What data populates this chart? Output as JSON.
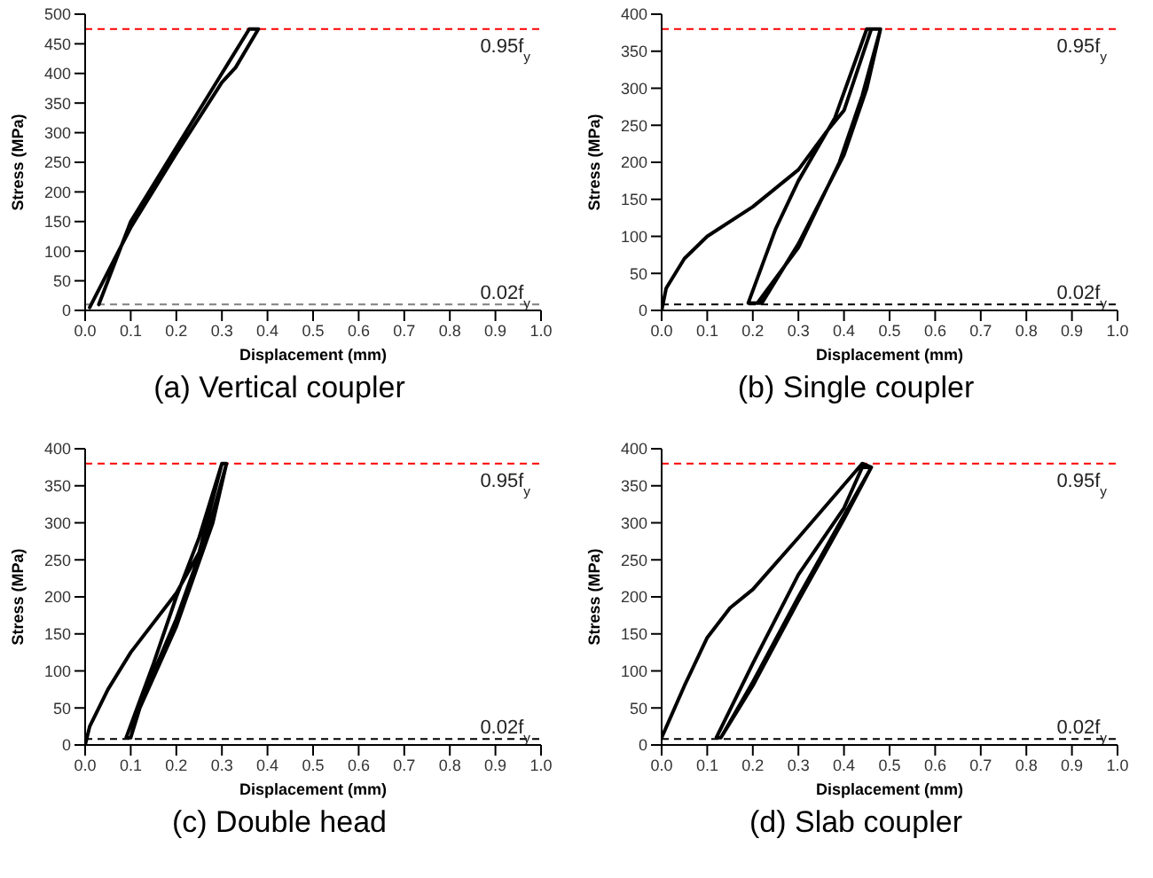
{
  "chart_data": [
    {
      "type": "line",
      "title": "(a) Vertical coupler",
      "xlabel": "Displacement (mm)",
      "ylabel": "Stress (MPa)",
      "xlim": [
        0,
        1
      ],
      "ylim": [
        0,
        500
      ],
      "xticks": [
        {
          "value": 0,
          "label": "0.0"
        },
        {
          "value": 0.1,
          "label": "0.1"
        },
        {
          "value": 0.2,
          "label": "0.2"
        },
        {
          "value": 0.3,
          "label": "0.3"
        },
        {
          "value": 0.4,
          "label": "0.4"
        },
        {
          "value": 0.5,
          "label": "0.5"
        },
        {
          "value": 0.6,
          "label": "0.6"
        },
        {
          "value": 0.7,
          "label": "0.7"
        },
        {
          "value": 0.8,
          "label": "0.8"
        },
        {
          "value": 0.9,
          "label": "0.9"
        },
        {
          "value": 1,
          "label": "1.0"
        }
      ],
      "yticks": [
        0,
        50,
        100,
        150,
        200,
        250,
        300,
        350,
        400,
        450,
        500
      ],
      "grid": false,
      "marker": "none",
      "series": [
        {
          "color": "#000000",
          "x": [
            0.01,
            0.1,
            0.2,
            0.3,
            0.33,
            0.38,
            0.36,
            0.3,
            0.2,
            0.1,
            0.03
          ],
          "values": [
            5,
            140,
            265,
            385,
            410,
            475,
            475,
            400,
            275,
            150,
            10
          ]
        }
      ],
      "ref_lines": [
        {
          "axis": "y",
          "value": 475,
          "label": "0.95f$_{y}$",
          "color": "#ff0000",
          "line_style": "dashed"
        },
        {
          "axis": "y",
          "value": 10,
          "label": "0.02f$_{y}$",
          "color": "#808080",
          "line_style": "dashed"
        }
      ]
    },
    {
      "type": "line",
      "title": "(b) Single coupler",
      "xlabel": "Displacement (mm)",
      "ylabel": "Stress (MPa)",
      "xlim": [
        0,
        1
      ],
      "ylim": [
        0,
        400
      ],
      "xticks": [
        {
          "value": 0,
          "label": "0.0"
        },
        {
          "value": 0.1,
          "label": "0.1"
        },
        {
          "value": 0.2,
          "label": "0.2"
        },
        {
          "value": 0.3,
          "label": "0.3"
        },
        {
          "value": 0.4,
          "label": "0.4"
        },
        {
          "value": 0.5,
          "label": "0.5"
        },
        {
          "value": 0.6,
          "label": "0.6"
        },
        {
          "value": 0.7,
          "label": "0.7"
        },
        {
          "value": 0.8,
          "label": "0.8"
        },
        {
          "value": 0.9,
          "label": "0.9"
        },
        {
          "value": 1,
          "label": "1.0"
        }
      ],
      "yticks": [
        0,
        50,
        100,
        150,
        200,
        250,
        300,
        350,
        400
      ],
      "grid": false,
      "marker": "none",
      "series": [
        {
          "color": "#000000",
          "x": [
            0,
            0.01,
            0.05,
            0.1,
            0.2,
            0.3,
            0.36,
            0.4,
            0.46,
            0.48,
            0.45,
            0.4,
            0.3,
            0.22,
            0.19,
            0.25,
            0.3,
            0.38,
            0.45,
            0.48,
            0.44,
            0.39,
            0.3,
            0.21
          ],
          "values": [
            0,
            30,
            70,
            100,
            140,
            190,
            240,
            270,
            380,
            380,
            300,
            210,
            90,
            10,
            10,
            110,
            175,
            260,
            380,
            380,
            290,
            200,
            85,
            10
          ]
        }
      ],
      "ref_lines": [
        {
          "axis": "y",
          "value": 380,
          "label": "0.95f$_{y}$",
          "color": "#ff0000",
          "line_style": "dashed"
        },
        {
          "axis": "y",
          "value": 8,
          "label": "0.02f$_{y}$",
          "color": "#000000",
          "line_style": "dashed"
        }
      ]
    },
    {
      "type": "line",
      "title": "(c) Double head",
      "xlabel": "Displacement (mm)",
      "ylabel": "Stress (MPa)",
      "xlim": [
        0,
        1
      ],
      "ylim": [
        0,
        400
      ],
      "xticks": [
        {
          "value": 0,
          "label": "0.0"
        },
        {
          "value": 0.1,
          "label": "0.1"
        },
        {
          "value": 0.2,
          "label": "0.2"
        },
        {
          "value": 0.3,
          "label": "0.3"
        },
        {
          "value": 0.4,
          "label": "0.4"
        },
        {
          "value": 0.5,
          "label": "0.5"
        },
        {
          "value": 0.6,
          "label": "0.6"
        },
        {
          "value": 0.7,
          "label": "0.7"
        },
        {
          "value": 0.8,
          "label": "0.8"
        },
        {
          "value": 0.9,
          "label": "0.9"
        },
        {
          "value": 1,
          "label": "1.0"
        }
      ],
      "yticks": [
        0,
        50,
        100,
        150,
        200,
        250,
        300,
        350,
        400
      ],
      "grid": false,
      "marker": "none",
      "series": [
        {
          "color": "#000000",
          "x": [
            0,
            0.01,
            0.05,
            0.1,
            0.2,
            0.25,
            0.3,
            0.31,
            0.28,
            0.2,
            0.12,
            0.1,
            0.09,
            0.15,
            0.2,
            0.25,
            0.3,
            0.31,
            0.27,
            0.2,
            0.12,
            0.1
          ],
          "values": [
            0,
            25,
            75,
            125,
            205,
            260,
            380,
            380,
            300,
            160,
            50,
            10,
            10,
            110,
            200,
            280,
            380,
            380,
            290,
            170,
            55,
            10
          ]
        }
      ],
      "ref_lines": [
        {
          "axis": "y",
          "value": 380,
          "label": "0.95f$_{y}$",
          "color": "#ff0000",
          "line_style": "dashed"
        },
        {
          "axis": "y",
          "value": 8,
          "label": "0.02f$_{y}$",
          "color": "#000000",
          "line_style": "dashed"
        }
      ]
    },
    {
      "type": "line",
      "title": "(d) Slab coupler",
      "xlabel": "Displacement (mm)",
      "ylabel": "Stress (MPa)",
      "xlim": [
        0,
        1
      ],
      "ylim": [
        0,
        400
      ],
      "xticks": [
        {
          "value": 0,
          "label": "0.0"
        },
        {
          "value": 0.1,
          "label": "0.1"
        },
        {
          "value": 0.2,
          "label": "0.2"
        },
        {
          "value": 0.3,
          "label": "0.3"
        },
        {
          "value": 0.4,
          "label": "0.4"
        },
        {
          "value": 0.5,
          "label": "0.5"
        },
        {
          "value": 0.6,
          "label": "0.6"
        },
        {
          "value": 0.7,
          "label": "0.7"
        },
        {
          "value": 0.8,
          "label": "0.8"
        },
        {
          "value": 0.9,
          "label": "0.9"
        },
        {
          "value": 1,
          "label": "1.0"
        }
      ],
      "yticks": [
        0,
        50,
        100,
        150,
        200,
        250,
        300,
        350,
        400
      ],
      "grid": false,
      "marker": "none",
      "series": [
        {
          "color": "#000000",
          "x": [
            0,
            0.05,
            0.1,
            0.15,
            0.2,
            0.25,
            0.3,
            0.44,
            0.46,
            0.4,
            0.3,
            0.2,
            0.13,
            0.12,
            0.2,
            0.3,
            0.4,
            0.44,
            0.46,
            0.4,
            0.3,
            0.2,
            0.13
          ],
          "values": [
            10,
            80,
            145,
            185,
            210,
            245,
            280,
            380,
            375,
            310,
            200,
            85,
            10,
            10,
            110,
            230,
            320,
            375,
            375,
            305,
            195,
            80,
            10
          ]
        }
      ],
      "ref_lines": [
        {
          "axis": "y",
          "value": 380,
          "label": "0.95f$_{y}$",
          "color": "#ff0000",
          "line_style": "dashed"
        },
        {
          "axis": "y",
          "value": 8,
          "label": "0.02f$_{y}$",
          "color": "#000000",
          "line_style": "dashed"
        }
      ]
    }
  ]
}
